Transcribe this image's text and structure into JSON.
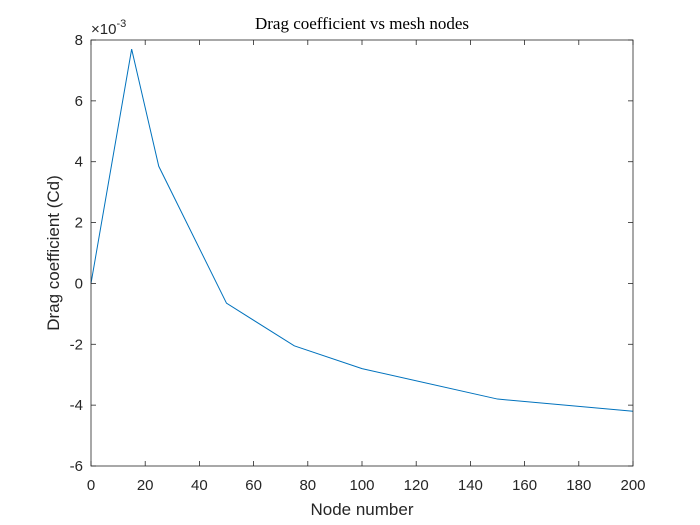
{
  "chart_data": {
    "type": "line",
    "title": "Drag coefficient vs mesh nodes",
    "xlabel": "Node number",
    "ylabel": "Drag coefficient (Cd)",
    "y_exponent_label": "×10",
    "y_exponent_power": "-3",
    "y_multiplier": 0.001,
    "xlim": [
      0,
      200
    ],
    "ylim": [
      -6,
      8
    ],
    "x_ticks": [
      0,
      20,
      40,
      60,
      80,
      100,
      120,
      140,
      160,
      180,
      200
    ],
    "y_ticks": [
      -6,
      -4,
      -2,
      0,
      2,
      4,
      6,
      8
    ],
    "x_tick_labels": [
      "0",
      "20",
      "40",
      "60",
      "80",
      "100",
      "120",
      "140",
      "160",
      "180",
      "200"
    ],
    "y_tick_labels": [
      "-6",
      "-4",
      "-2",
      "0",
      "2",
      "4",
      "6",
      "8"
    ],
    "grid": false,
    "series": [
      {
        "color": "#0072bd",
        "x": [
          0,
          15,
          25,
          50,
          75,
          100,
          150,
          200
        ],
        "y": [
          0.0,
          7.7,
          3.85,
          -0.65,
          -2.05,
          -2.8,
          -3.8,
          -4.2
        ]
      }
    ]
  }
}
